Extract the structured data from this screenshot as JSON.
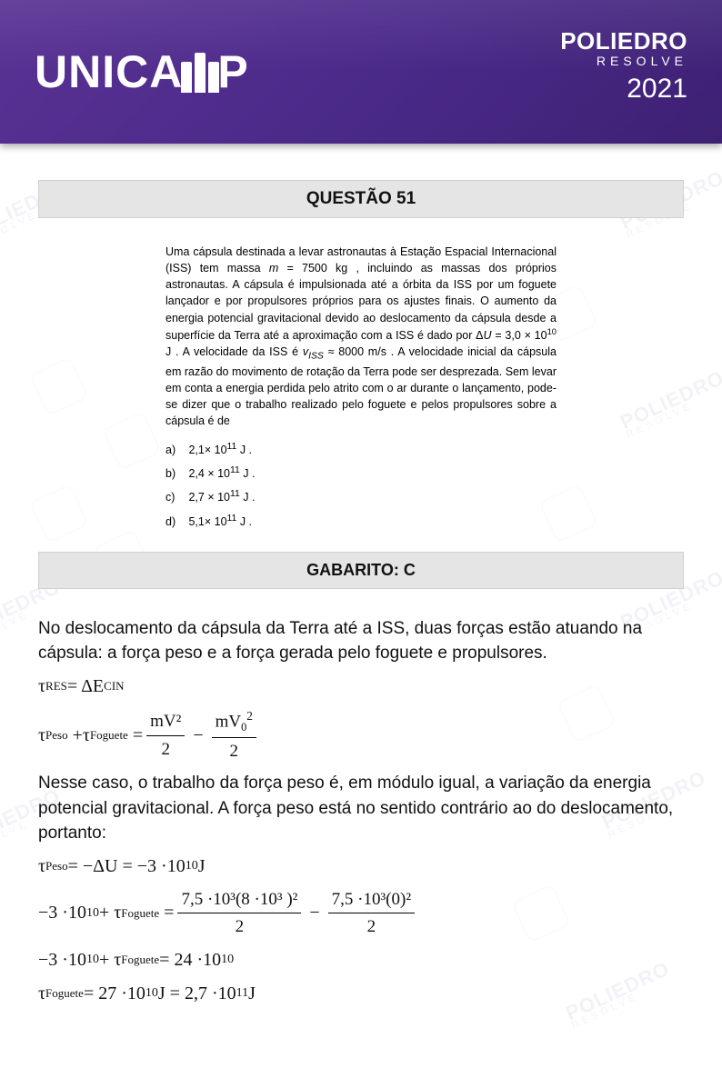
{
  "header": {
    "left_text_before_m": "UNICA",
    "left_text_after_m": "P",
    "m_bar_heights": [
      34,
      44,
      34
    ],
    "right_title": "POLIEDRO",
    "right_sub": "RESOLVE",
    "right_year": "2021"
  },
  "colors": {
    "header_gradient_start": "#5a3294",
    "header_gradient_end": "#3d2173",
    "bar_bg": "#e5e5e5",
    "bar_border": "#d0d0d0"
  },
  "question": {
    "title": "QUESTÃO 51",
    "body_html": "Uma cápsula destinada a levar astronautas à Estação Espacial Internacional (ISS) tem massa <i>m</i> = 7500 kg , incluindo as massas dos próprios astronautas. A cápsula é impulsionada até a órbita da ISS por um foguete lançador e por propulsores próprios para os ajustes finais. O aumento da energia potencial gravitacional devido ao deslocamento da cápsula desde a superfície da Terra até a aproximação com a ISS é dado por Δ<i>U</i> = 3,0 × 10<sup>10</sup> J . A velocidade da ISS é <i>v<sub>ISS</sub></i> ≈ 8000 m/s . A velocidade inicial da cápsula em razão do movimento de rotação da Terra pode ser desprezada. Sem levar em conta a energia perdida pelo atrito com o ar durante o lançamento, pode-se dizer que o trabalho realizado pelo foguete e pelos propulsores sobre a cápsula é de",
    "alternatives": [
      {
        "label": "a)",
        "text_html": "2,1× 10<sup>11</sup> J ."
      },
      {
        "label": "b)",
        "text_html": "2,4 × 10<sup>11</sup> J ."
      },
      {
        "label": "c)",
        "text_html": "2,7 × 10<sup>11</sup> J ."
      },
      {
        "label": "d)",
        "text_html": "5,1× 10<sup>11</sup> J ."
      }
    ]
  },
  "answer": {
    "label": "GABARITO: C"
  },
  "solution": {
    "p1": "No deslocamento da cápsula da Terra até a ISS, duas forças estão atuando na cápsula: a força peso e a força gerada pelo foguete e propulsores.",
    "eq1_lhs": "τ",
    "eq1_sub1": "RES",
    "eq1_rhs1": " = ΔE",
    "eq1_sub2": "CIN",
    "eq2_t1_sub": "Peso",
    "eq2_t2_sub": "Foguete",
    "eq2_frac1_num": "mV²",
    "eq2_frac1_den": "2",
    "eq2_frac2_num_a": "mV",
    "eq2_frac2_num_b": "0",
    "eq2_frac2_num_c": "2",
    "eq2_frac2_den": "2",
    "p2": "Nesse caso, o trabalho da força peso é, em módulo igual, a variação da energia potencial gravitacional. A força peso está no sentido contrário ao do deslocamento, portanto:",
    "eq3": "τ_Peso = −ΔU = −3·10^10 J",
    "eq3_sub": "Peso",
    "eq3_rhs": " = −ΔU = −3 ·10",
    "eq3_exp": "10",
    "eq3_unit": "  J",
    "eq4_lhs_a": "−3 ·10",
    "eq4_lhs_exp": "10",
    "eq4_lhs_b": " + τ",
    "eq4_lhs_sub": "Foguete",
    "eq4_frac1_num": "7,5 ·10³(8 ·10³ )²",
    "eq4_frac1_den": "2",
    "eq4_frac2_num": "7,5 ·10³(0)²",
    "eq4_frac2_den": "2",
    "eq5_lhs_a": "−3 ·10",
    "eq5_lhs_exp": "10",
    "eq5_lhs_b": " + τ",
    "eq5_lhs_sub": "Foguete",
    "eq5_rhs_a": " = 24 ·10",
    "eq5_rhs_exp": "10",
    "eq6_a": "τ",
    "eq6_sub": "Foguete",
    "eq6_b": " = 27 ·10",
    "eq6_exp1": "10",
    "eq6_c": "  J = 2,7 ·10",
    "eq6_exp2": "11",
    "eq6_d": "  J"
  }
}
